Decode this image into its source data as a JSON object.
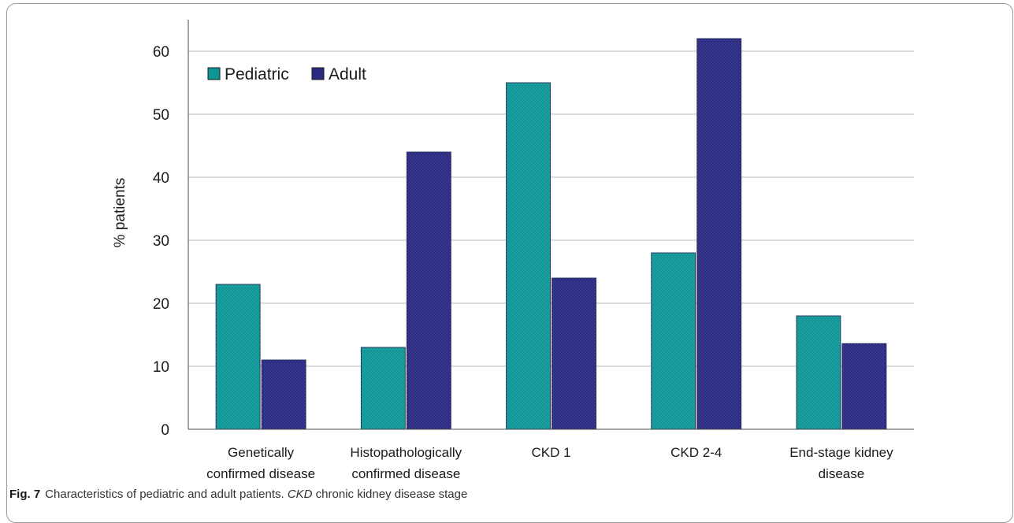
{
  "chart_data": {
    "type": "bar",
    "categories": [
      [
        "Genetically",
        "confirmed disease"
      ],
      [
        "Histopathologically",
        "confirmed disease"
      ],
      [
        "CKD 1"
      ],
      [
        "CKD 2-4"
      ],
      [
        "End-stage kidney",
        "disease"
      ]
    ],
    "series": [
      {
        "name": "Pediatric",
        "values": [
          23,
          13,
          55,
          28,
          18
        ],
        "color": "#0e9595"
      },
      {
        "name": "Adult",
        "values": [
          11,
          44,
          24,
          62,
          13.6
        ],
        "color": "#2a2a82"
      }
    ],
    "ylabel": "% patients",
    "xlabel": "",
    "ylim": [
      0,
      65
    ],
    "yticks": [
      0,
      10,
      20,
      30,
      40,
      50,
      60
    ],
    "grid": true,
    "legend_position": "top-left"
  },
  "caption": {
    "label": "Fig. 7",
    "text_1": "Characteristics of pediatric and adult patients. ",
    "abbr": "CKD",
    "text_2": " chronic kidney disease stage"
  }
}
